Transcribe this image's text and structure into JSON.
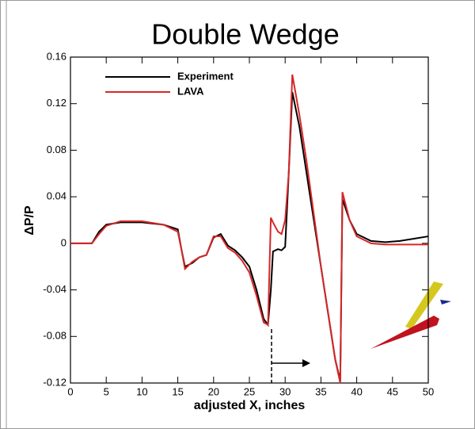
{
  "chart_data": {
    "type": "line",
    "title": "Double Wedge",
    "x_label": "adjusted X, inches",
    "y_label": "ΔP/P",
    "x": [
      0,
      3,
      4,
      5,
      7,
      10,
      13,
      15,
      15.5,
      16,
      17,
      18,
      19,
      20,
      21,
      22,
      23,
      24,
      25,
      26,
      27,
      27.6,
      28,
      28.3,
      29,
      29.5,
      30,
      30.5,
      31,
      32,
      33,
      34,
      35,
      36,
      37,
      37.7,
      38,
      39,
      40,
      42,
      44,
      46,
      48,
      50
    ],
    "series": [
      {
        "name": "Experiment",
        "color": "#000000",
        "values": [
          0,
          0,
          0.01,
          0.016,
          0.018,
          0.018,
          0.016,
          0.012,
          -0.005,
          -0.02,
          -0.017,
          -0.012,
          -0.01,
          0.005,
          0.008,
          -0.002,
          -0.006,
          -0.012,
          -0.02,
          -0.04,
          -0.065,
          -0.07,
          -0.04,
          -0.007,
          -0.005,
          -0.006,
          -0.003,
          0.06,
          0.13,
          0.1,
          0.06,
          0.02,
          -0.02,
          -0.06,
          -0.1,
          -0.118,
          0.038,
          0.02,
          0.008,
          0.002,
          0.001,
          0.002,
          0.004,
          0.006
        ]
      },
      {
        "name": "LAVA",
        "color": "#d62728",
        "values": [
          0,
          0,
          0.008,
          0.015,
          0.019,
          0.019,
          0.016,
          0.01,
          -0.005,
          -0.022,
          -0.016,
          -0.012,
          -0.01,
          0.006,
          0.006,
          -0.004,
          -0.008,
          -0.015,
          -0.025,
          -0.045,
          -0.068,
          -0.07,
          0.022,
          0.018,
          0.01,
          0.008,
          0.02,
          0.06,
          0.145,
          0.11,
          0.07,
          0.025,
          -0.02,
          -0.06,
          -0.1,
          -0.12,
          0.044,
          0.02,
          0.006,
          0,
          -0.001,
          -0.001,
          -0.001,
          -0.001
        ]
      }
    ],
    "xlim": [
      0,
      50
    ],
    "xticks": [
      0,
      5,
      10,
      15,
      20,
      25,
      30,
      35,
      40,
      45,
      50
    ],
    "ylim": [
      -0.12,
      0.16
    ],
    "yticks": [
      -0.12,
      -0.08,
      -0.04,
      0,
      0.04,
      0.08,
      0.12,
      0.16
    ],
    "legend": "upper-left"
  }
}
